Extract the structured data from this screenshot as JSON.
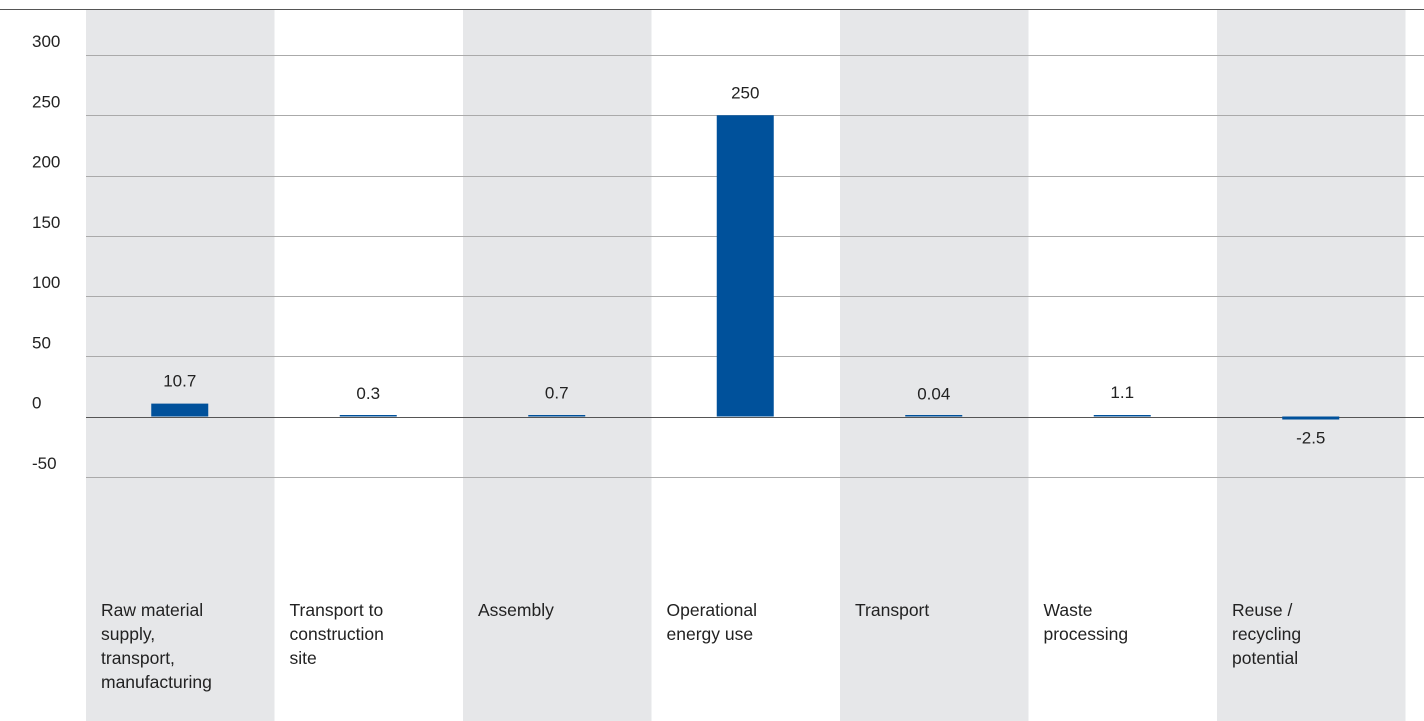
{
  "chart_data": {
    "type": "bar",
    "categories": [
      "Raw material\nsupply,\ntransport,\nmanufacturing",
      "Transport to\nconstruction\nsite",
      "Assembly",
      "Operational\nenergy use",
      "Transport",
      "Waste\nprocessing",
      "Reuse /\nrecycling\npotential"
    ],
    "values": [
      10.7,
      0.3,
      0.7,
      250,
      0.04,
      1.1,
      -2.5
    ],
    "data_labels": [
      "10.7",
      "0.3",
      "0.7",
      "250",
      "0.04",
      "1.1",
      "-2.5"
    ],
    "y_ticks": [
      300,
      250,
      200,
      150,
      100,
      50,
      0,
      -50
    ],
    "y_tick_labels": [
      "300",
      "250",
      "200",
      "150",
      "100",
      "50",
      "0",
      "-50"
    ],
    "ylim": [
      -50,
      300
    ],
    "grid": true,
    "legend": "none",
    "colors": {
      "bar": "#00519B",
      "shaded_band": "#E6E7E9",
      "gridline": "#AAAAAA",
      "top_rule": "#555555",
      "text": "#222222"
    }
  }
}
